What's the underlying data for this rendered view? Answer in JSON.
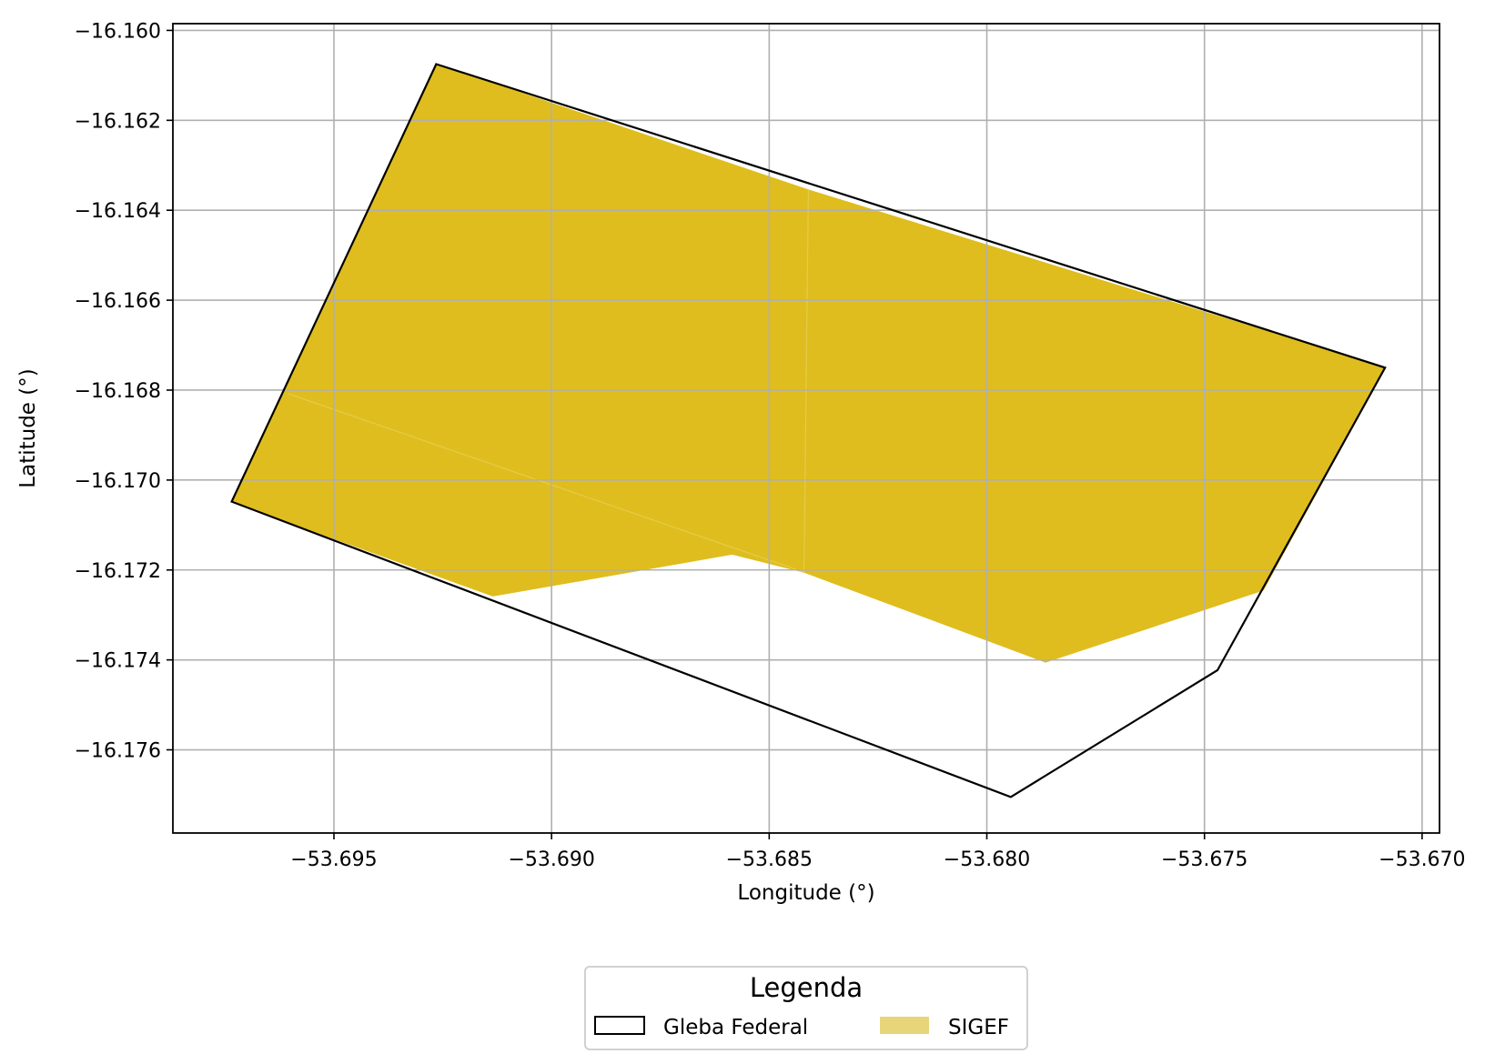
{
  "chart_data": {
    "type": "map",
    "xlabel": "Longitude (°)",
    "ylabel": "Latitude (°)",
    "xlim": [
      -53.6987,
      -53.6696
    ],
    "ylim": [
      -16.17785,
      -16.15985
    ],
    "grid": true,
    "xticks": [
      -53.695,
      -53.69,
      -53.685,
      -53.68,
      -53.675,
      -53.67
    ],
    "xtick_labels": [
      "−53.695",
      "−53.690",
      "−53.685",
      "−53.680",
      "−53.675",
      "−53.670"
    ],
    "yticks": [
      -16.16,
      -16.162,
      -16.164,
      -16.166,
      -16.168,
      -16.17,
      -16.172,
      -16.174,
      -16.176
    ],
    "ytick_labels": [
      "−16.160",
      "−16.162",
      "−16.164",
      "−16.166",
      "−16.168",
      "−16.170",
      "−16.172",
      "−16.174",
      "−16.176"
    ],
    "layers": [
      {
        "name": "SIGEF",
        "type": "polygon-fill",
        "color": "#dfbd1f",
        "polygons": [
          [
            [
              -53.69265,
              -16.16075
            ],
            [
              -53.6841,
              -16.16355
            ],
            [
              -53.6842,
              -16.17205
            ],
            [
              -53.68585,
              -16.17165
            ],
            [
              -53.69135,
              -16.17258
            ],
            [
              -53.69735,
              -16.17048
            ]
          ],
          [
            [
              -53.6841,
              -16.16355
            ],
            [
              -53.67085,
              -16.1675
            ],
            [
              -53.67365,
              -16.17245
            ],
            [
              -53.67865,
              -16.17405
            ],
            [
              -53.6842,
              -16.17205
            ]
          ]
        ],
        "seams": [
          [
            [
              -53.69605,
              -16.16808
            ],
            [
              -53.6842,
              -16.17205
            ]
          ],
          [
            [
              -53.6841,
              -16.16355
            ],
            [
              -53.6842,
              -16.17205
            ]
          ]
        ]
      },
      {
        "name": "Gleba Federal",
        "type": "polygon-outline",
        "color": "#000000",
        "polygon": [
          [
            -53.69265,
            -16.16075
          ],
          [
            -53.67085,
            -16.1675
          ],
          [
            -53.6747,
            -16.17423
          ],
          [
            -53.67945,
            -16.17705
          ],
          [
            -53.69735,
            -16.17048
          ]
        ]
      }
    ],
    "legend": {
      "title": "Legenda",
      "placement": "bottom-center",
      "entries": [
        {
          "label": "Gleba Federal",
          "style": "outline",
          "color": "#000000"
        },
        {
          "label": "SIGEF",
          "style": "fill",
          "color": "#e8d57a"
        }
      ]
    }
  }
}
